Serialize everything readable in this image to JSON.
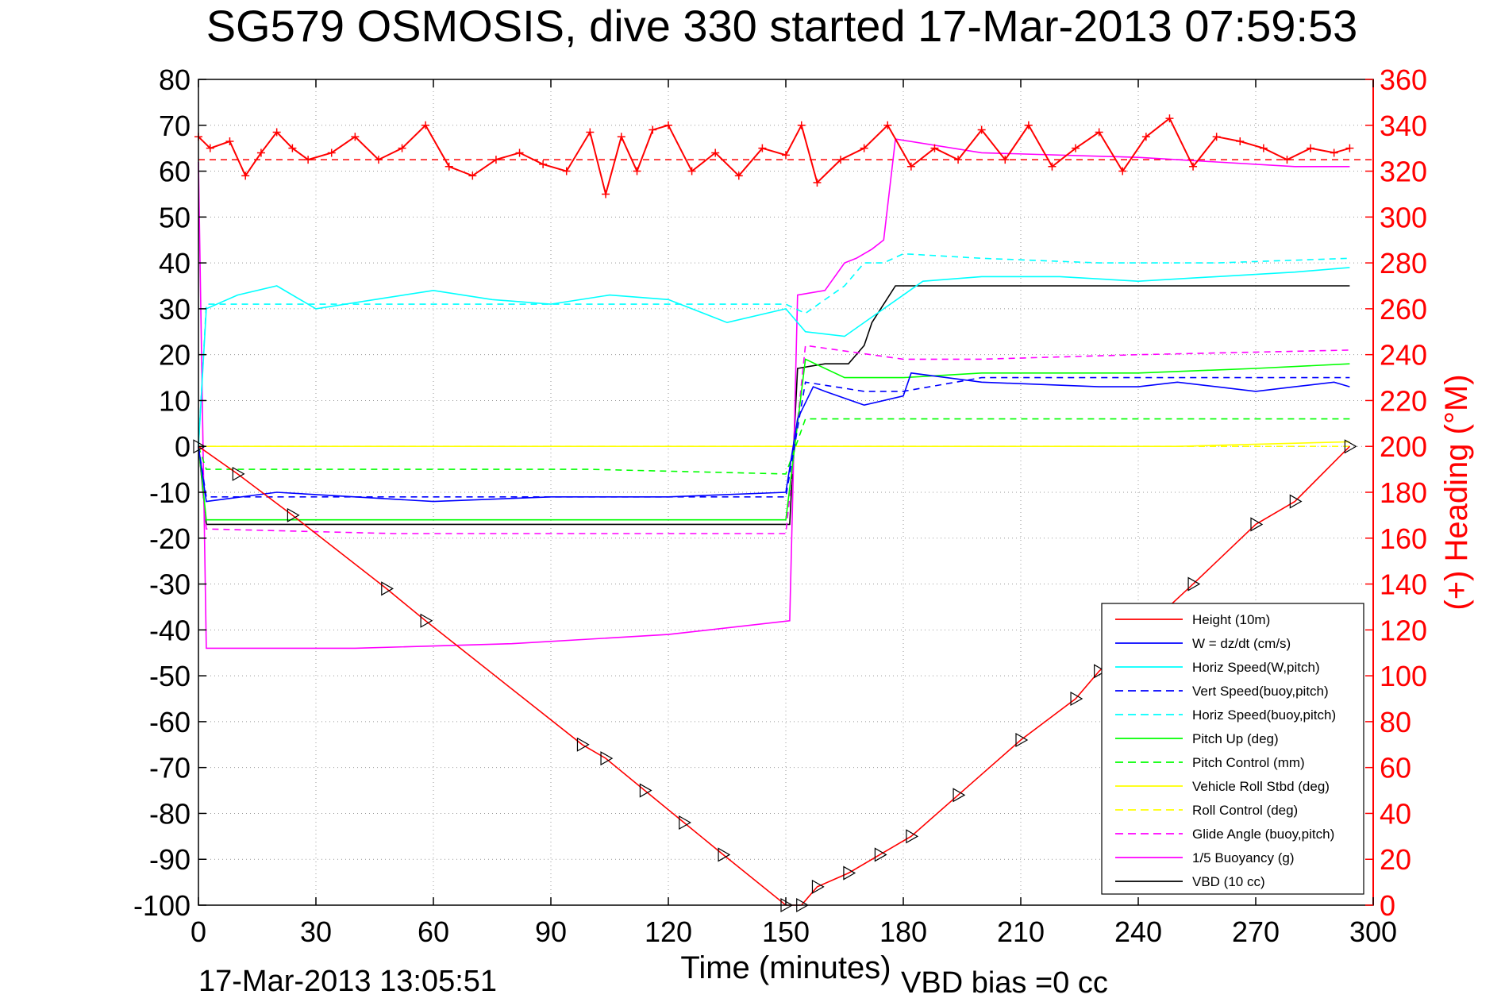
{
  "title": "SG579 OSMOSIS, dive 330 started 17-Mar-2013 07:59:53",
  "footer_timestamp": "17-Mar-2013 13:05:51",
  "vbd_bias_label": "VBD bias =0 cc",
  "colors": {
    "height": "#ff0000",
    "w": "#0000ff",
    "horiz": "#00ffff",
    "pitch": "#00ff00",
    "roll": "#ffff00",
    "glide": "#ff00ff",
    "buoyancy": "#ff00ff",
    "vbd": "#000000",
    "heading": "#ff0000"
  },
  "chart_data": {
    "type": "line",
    "title": "SG579 OSMOSIS, dive 330 started 17-Mar-2013 07:59:53",
    "xlabel": "Time (minutes)",
    "ylabel": "",
    "y2label": "(+) Heading (°M)",
    "xlim": [
      0,
      300
    ],
    "ylim": [
      -100,
      80
    ],
    "y2lim": [
      0,
      360
    ],
    "x_ticks": [
      "0",
      "30",
      "60",
      "90",
      "120",
      "150",
      "180",
      "210",
      "240",
      "270",
      "300"
    ],
    "y_ticks": [
      "80",
      "70",
      "60",
      "50",
      "40",
      "30",
      "20",
      "10",
      "0",
      "-10",
      "-20",
      "-30",
      "-40",
      "-50",
      "-60",
      "-70",
      "-80",
      "-90",
      "-100"
    ],
    "y2_ticks": [
      "360",
      "340",
      "320",
      "300",
      "280",
      "260",
      "240",
      "220",
      "200",
      "180",
      "160",
      "140",
      "120",
      "100",
      "80",
      "60",
      "40",
      "20",
      "0"
    ],
    "grid": true,
    "legend_position": "bottom-right",
    "series": [
      {
        "name": "Height (10m)",
        "style": "solid",
        "color": "#ff0000",
        "markers": "triangle",
        "x": [
          0,
          10,
          24,
          48,
          58,
          98,
          104,
          114,
          124,
          134,
          150,
          154,
          158,
          166,
          174,
          182,
          194,
          210,
          224,
          230,
          254,
          270,
          280,
          294
        ],
        "y": [
          0,
          -6,
          -15,
          -31,
          -38,
          -65,
          -68,
          -75,
          -82,
          -89,
          -100,
          -100,
          -96,
          -93,
          -89,
          -85,
          -76,
          -64,
          -55,
          -49,
          -30,
          -17,
          -12,
          0
        ]
      },
      {
        "name": "W = dz/dt (cm/s)",
        "style": "solid",
        "color": "#0000ff",
        "x": [
          0,
          2,
          20,
          40,
          60,
          90,
          120,
          150,
          153,
          157,
          160,
          170,
          180,
          182,
          200,
          230,
          240,
          250,
          260,
          270,
          280,
          290,
          294
        ],
        "y": [
          0,
          -12,
          -10,
          -11,
          -12,
          -11,
          -11,
          -10,
          6,
          13,
          12,
          9,
          11,
          16,
          14,
          13,
          13,
          14,
          13,
          12,
          13,
          14,
          13
        ]
      },
      {
        "name": "Horiz Speed(W,pitch)",
        "style": "solid",
        "color": "#00ffff",
        "x": [
          0,
          2,
          10,
          20,
          30,
          45,
          60,
          75,
          90,
          105,
          120,
          135,
          150,
          155,
          165,
          175,
          185,
          200,
          220,
          240,
          260,
          280,
          294
        ],
        "y": [
          0,
          30,
          33,
          35,
          30,
          32,
          34,
          32,
          31,
          33,
          32,
          27,
          30,
          25,
          24,
          30,
          36,
          37,
          37,
          36,
          37,
          38,
          39
        ]
      },
      {
        "name": "Vert Speed(buoy,pitch)",
        "style": "dashed",
        "color": "#0000ff",
        "x": [
          0,
          2,
          40,
          100,
          150,
          155,
          170,
          180,
          200,
          240,
          270,
          294
        ],
        "y": [
          0,
          -11,
          -11,
          -11,
          -11,
          14,
          12,
          12,
          15,
          15,
          15,
          15
        ]
      },
      {
        "name": "Horiz Speed(buoy,pitch)",
        "style": "dashed",
        "color": "#00ffff",
        "x": [
          0,
          2,
          40,
          100,
          150,
          155,
          165,
          170,
          175,
          180,
          200,
          230,
          260,
          294
        ],
        "y": [
          0,
          31,
          31,
          31,
          31,
          29,
          35,
          40,
          40,
          42,
          41,
          40,
          40,
          41
        ]
      },
      {
        "name": "Pitch Up (deg)",
        "style": "solid",
        "color": "#00ff00",
        "x": [
          0,
          2,
          20,
          60,
          100,
          150,
          155,
          165,
          180,
          200,
          240,
          270,
          294
        ],
        "y": [
          0,
          -16,
          -16,
          -16,
          -16,
          -16,
          19,
          15,
          15,
          16,
          16,
          17,
          18
        ]
      },
      {
        "name": "Pitch Control (mm)",
        "style": "dashed",
        "color": "#00ff00",
        "x": [
          0,
          2,
          50,
          100,
          150,
          155,
          160,
          180,
          200,
          240,
          294
        ],
        "y": [
          0,
          -5,
          -5,
          -5,
          -6,
          6,
          6,
          6,
          6,
          6,
          6
        ]
      },
      {
        "name": "Vehicle Roll Stbd (deg)",
        "style": "solid",
        "color": "#ffff00",
        "x": [
          0,
          2,
          50,
          100,
          150,
          155,
          200,
          250,
          294
        ],
        "y": [
          0,
          0,
          0,
          0,
          0,
          0,
          0,
          0,
          1
        ]
      },
      {
        "name": "Roll Control (deg)",
        "style": "dashed",
        "color": "#ffff00",
        "x": [
          0,
          2,
          100,
          150,
          155,
          200,
          250,
          294
        ],
        "y": [
          0,
          0,
          0,
          0,
          0,
          0,
          0,
          0
        ]
      },
      {
        "name": "Glide Angle (buoy,pitch)",
        "style": "dashed",
        "color": "#ff00ff",
        "x": [
          0,
          2,
          50,
          100,
          150,
          155,
          180,
          200,
          240,
          294
        ],
        "y": [
          0,
          -18,
          -19,
          -19,
          -19,
          22,
          19,
          19,
          20,
          21
        ]
      },
      {
        "name": "1/5 Buoyancy (g)",
        "style": "solid",
        "color": "#ff00ff",
        "x": [
          0,
          2,
          40,
          80,
          120,
          151,
          153,
          160,
          165,
          168,
          172,
          175,
          178,
          200,
          240,
          280,
          294
        ],
        "y": [
          62,
          -44,
          -44,
          -43,
          -41,
          -38,
          33,
          34,
          40,
          41,
          43,
          45,
          67,
          64,
          63,
          61,
          61
        ]
      },
      {
        "name": "VBD (10 cc)",
        "style": "solid",
        "color": "#000000",
        "x": [
          0,
          2,
          40,
          100,
          151,
          153,
          160,
          166,
          170,
          172,
          175,
          178,
          200,
          240,
          280,
          294
        ],
        "y": [
          0,
          -17,
          -17,
          -17,
          -17,
          17,
          18,
          18,
          22,
          27,
          31,
          35,
          35,
          35,
          35,
          35
        ]
      }
    ],
    "heading_series": {
      "name": "(+) Heading (°M)",
      "color": "#ff0000",
      "reference": 325,
      "x": [
        0,
        3,
        8,
        12,
        16,
        20,
        24,
        28,
        34,
        40,
        46,
        52,
        58,
        64,
        70,
        76,
        82,
        88,
        94,
        100,
        104,
        108,
        112,
        116,
        120,
        126,
        132,
        138,
        144,
        150,
        154,
        158,
        164,
        170,
        176,
        182,
        188,
        194,
        200,
        206,
        212,
        218,
        224,
        230,
        236,
        242,
        248,
        254,
        260,
        266,
        272,
        278,
        284,
        290,
        294
      ],
      "y": [
        335,
        330,
        333,
        318,
        328,
        337,
        330,
        325,
        328,
        335,
        325,
        330,
        340,
        322,
        318,
        325,
        328,
        323,
        320,
        337,
        310,
        335,
        320,
        338,
        340,
        320,
        328,
        318,
        330,
        327,
        340,
        315,
        325,
        330,
        340,
        322,
        330,
        325,
        338,
        325,
        340,
        322,
        330,
        337,
        320,
        335,
        343,
        322,
        335,
        333,
        330,
        325,
        330,
        328,
        330
      ]
    }
  }
}
